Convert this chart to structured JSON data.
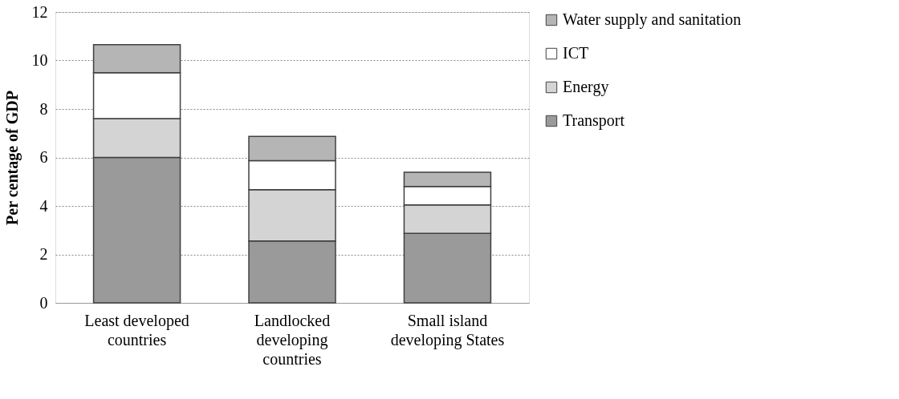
{
  "chart_data": {
    "type": "bar",
    "stacked": true,
    "ylabel": "Per centage of GDP",
    "categories": [
      "Least developed countries",
      "Landlocked developing countries",
      "Small island developing States"
    ],
    "series": [
      {
        "name": "Transport",
        "color": "#9a9a9a",
        "values": [
          6.0,
          2.55,
          2.87
        ]
      },
      {
        "name": "Energy",
        "color": "#d4d4d4",
        "values": [
          1.6,
          2.12,
          1.17
        ]
      },
      {
        "name": "ICT",
        "color": "#ffffff",
        "values": [
          1.9,
          1.2,
          0.76
        ]
      },
      {
        "name": "Water supply and sanitation",
        "color": "#b5b5b5",
        "values": [
          1.15,
          1.0,
          0.59
        ]
      }
    ],
    "ylim": [
      0,
      12
    ],
    "yticks": [
      0,
      2,
      4,
      6,
      8,
      10,
      12
    ],
    "grid": "y",
    "legend": "right"
  }
}
